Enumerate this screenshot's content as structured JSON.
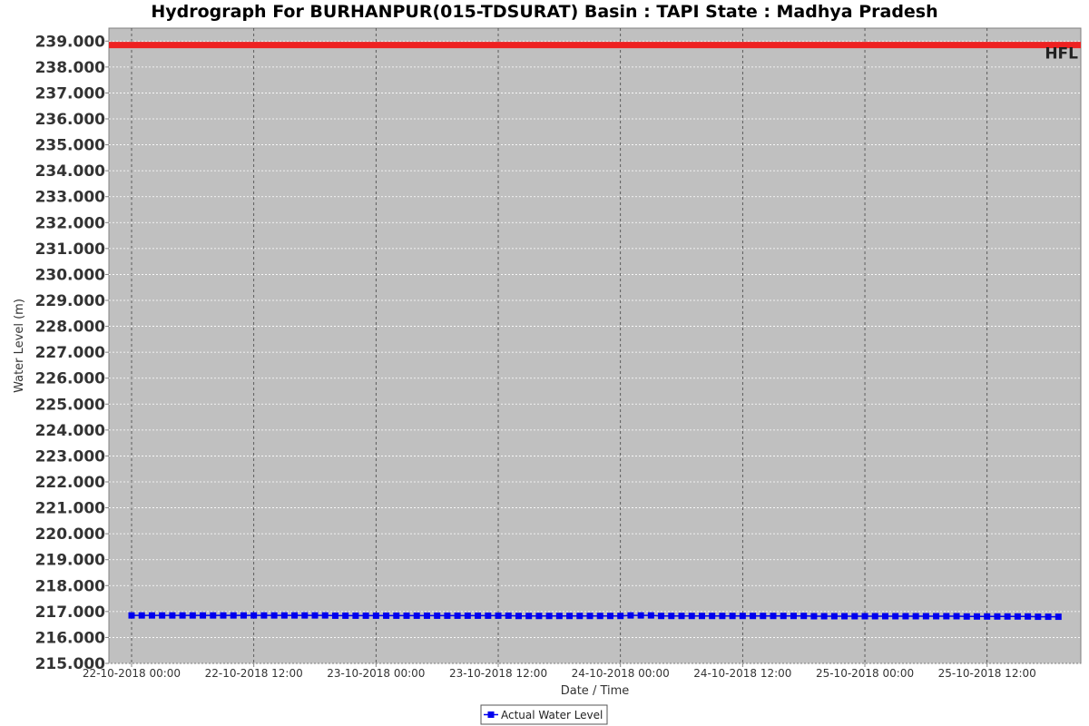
{
  "chart_data": {
    "type": "line",
    "title": "Hydrograph For BURHANPUR(015-TDSURAT) Basin : TAPI State : Madhya Pradesh",
    "xlabel": "Date / Time",
    "ylabel": "Water Level (m)",
    "ylim": [
      215,
      239.5
    ],
    "y_ticks": [
      "215.000",
      "216.000",
      "217.000",
      "218.000",
      "219.000",
      "220.000",
      "221.000",
      "222.000",
      "223.000",
      "224.000",
      "225.000",
      "226.000",
      "227.000",
      "228.000",
      "229.000",
      "230.000",
      "231.000",
      "232.000",
      "233.000",
      "234.000",
      "235.000",
      "236.000",
      "237.000",
      "238.000",
      "239.000"
    ],
    "x_ticks": [
      "22-10-2018 00:00",
      "22-10-2018 12:00",
      "23-10-2018 00:00",
      "23-10-2018 12:00",
      "24-10-2018 00:00",
      "24-10-2018 12:00",
      "25-10-2018 00:00",
      "25-10-2018 12:00"
    ],
    "xlim": [
      "22-10-2018 00:00",
      "25-10-2018 19:20"
    ],
    "grid": true,
    "legend_position": "bottom-center",
    "hfl": {
      "label": "HFL",
      "value": 238.85,
      "color": "#ee2222"
    },
    "series": [
      {
        "name": "Actual Water Level",
        "color": "#0000ee",
        "marker": "square",
        "x": [
          "22-10-2018 00:00",
          "22-10-2018 01:00",
          "22-10-2018 02:00",
          "22-10-2018 03:00",
          "22-10-2018 04:00",
          "22-10-2018 05:00",
          "22-10-2018 06:00",
          "22-10-2018 07:00",
          "22-10-2018 08:00",
          "22-10-2018 09:00",
          "22-10-2018 10:00",
          "22-10-2018 11:00",
          "22-10-2018 12:00",
          "22-10-2018 13:00",
          "22-10-2018 14:00",
          "22-10-2018 15:00",
          "22-10-2018 16:00",
          "22-10-2018 17:00",
          "22-10-2018 18:00",
          "22-10-2018 19:00",
          "22-10-2018 20:00",
          "22-10-2018 21:00",
          "22-10-2018 22:00",
          "22-10-2018 23:00",
          "23-10-2018 00:00",
          "23-10-2018 01:00",
          "23-10-2018 02:00",
          "23-10-2018 03:00",
          "23-10-2018 04:00",
          "23-10-2018 05:00",
          "23-10-2018 06:00",
          "23-10-2018 07:00",
          "23-10-2018 08:00",
          "23-10-2018 09:00",
          "23-10-2018 10:00",
          "23-10-2018 11:00",
          "23-10-2018 12:00",
          "23-10-2018 13:00",
          "23-10-2018 14:00",
          "23-10-2018 15:00",
          "23-10-2018 16:00",
          "23-10-2018 17:00",
          "23-10-2018 18:00",
          "23-10-2018 19:00",
          "23-10-2018 20:00",
          "23-10-2018 21:00",
          "23-10-2018 22:00",
          "23-10-2018 23:00",
          "24-10-2018 00:00",
          "24-10-2018 01:00",
          "24-10-2018 02:00",
          "24-10-2018 03:00",
          "24-10-2018 04:00",
          "24-10-2018 05:00",
          "24-10-2018 06:00",
          "24-10-2018 07:00",
          "24-10-2018 08:00",
          "24-10-2018 09:00",
          "24-10-2018 10:00",
          "24-10-2018 11:00",
          "24-10-2018 12:00",
          "24-10-2018 13:00",
          "24-10-2018 14:00",
          "24-10-2018 15:00",
          "24-10-2018 16:00",
          "24-10-2018 17:00",
          "24-10-2018 18:00",
          "24-10-2018 19:00",
          "24-10-2018 20:00",
          "24-10-2018 21:00",
          "24-10-2018 22:00",
          "24-10-2018 23:00",
          "25-10-2018 00:00",
          "25-10-2018 01:00",
          "25-10-2018 02:00",
          "25-10-2018 03:00",
          "25-10-2018 04:00",
          "25-10-2018 05:00",
          "25-10-2018 06:00",
          "25-10-2018 07:00",
          "25-10-2018 08:00",
          "25-10-2018 09:00",
          "25-10-2018 10:00",
          "25-10-2018 11:00",
          "25-10-2018 12:00",
          "25-10-2018 13:00",
          "25-10-2018 14:00",
          "25-10-2018 15:00",
          "25-10-2018 16:00",
          "25-10-2018 17:00",
          "25-10-2018 18:00",
          "25-10-2018 19:00"
        ],
        "values": [
          216.85,
          216.85,
          216.85,
          216.85,
          216.85,
          216.85,
          216.85,
          216.85,
          216.85,
          216.85,
          216.85,
          216.85,
          216.85,
          216.85,
          216.85,
          216.85,
          216.85,
          216.85,
          216.85,
          216.85,
          216.84,
          216.84,
          216.84,
          216.84,
          216.84,
          216.84,
          216.84,
          216.84,
          216.84,
          216.84,
          216.84,
          216.84,
          216.84,
          216.84,
          216.84,
          216.84,
          216.84,
          216.84,
          216.83,
          216.83,
          216.83,
          216.83,
          216.83,
          216.83,
          216.83,
          216.83,
          216.83,
          216.83,
          216.83,
          216.85,
          216.85,
          216.85,
          216.83,
          216.83,
          216.83,
          216.83,
          216.83,
          216.83,
          216.83,
          216.83,
          216.83,
          216.83,
          216.83,
          216.83,
          216.83,
          216.83,
          216.83,
          216.82,
          216.82,
          216.82,
          216.82,
          216.82,
          216.82,
          216.82,
          216.82,
          216.82,
          216.82,
          216.82,
          216.82,
          216.82,
          216.82,
          216.82,
          216.81,
          216.81,
          216.81,
          216.81,
          216.81,
          216.81,
          216.81,
          216.8,
          216.8,
          216.8
        ]
      }
    ]
  }
}
